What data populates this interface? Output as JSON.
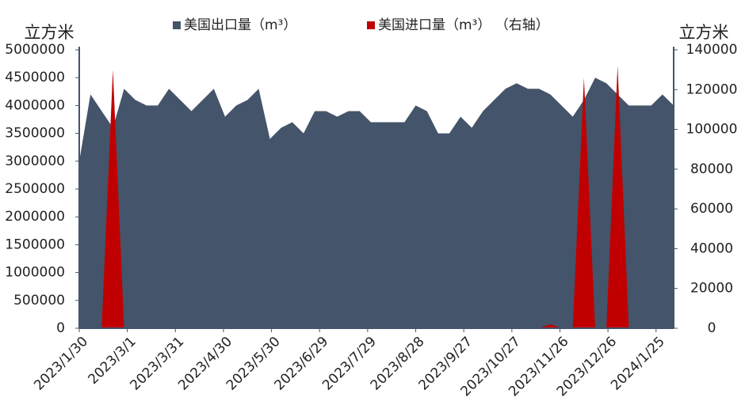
{
  "chart_data": {
    "type": "area",
    "y_axis_label": "立方米",
    "y2_axis_label": "立方米",
    "x": [
      "2023/1/30",
      "2023/2/6",
      "2023/2/13",
      "2023/2/20",
      "2023/2/27",
      "2023/3/6",
      "2023/3/13",
      "2023/3/20",
      "2023/3/27",
      "2023/4/3",
      "2023/4/10",
      "2023/4/17",
      "2023/4/24",
      "2023/5/1",
      "2023/5/8",
      "2023/5/15",
      "2023/5/22",
      "2023/5/29",
      "2023/6/5",
      "2023/6/12",
      "2023/6/19",
      "2023/6/26",
      "2023/7/3",
      "2023/7/10",
      "2023/7/17",
      "2023/7/24",
      "2023/7/31",
      "2023/8/7",
      "2023/8/14",
      "2023/8/21",
      "2023/8/28",
      "2023/9/4",
      "2023/9/11",
      "2023/9/18",
      "2023/9/25",
      "2023/10/2",
      "2023/10/9",
      "2023/10/16",
      "2023/10/23",
      "2023/10/30",
      "2023/11/6",
      "2023/11/13",
      "2023/11/20",
      "2023/11/27",
      "2023/12/4",
      "2023/12/11",
      "2023/12/18",
      "2023/12/25",
      "2024/1/1",
      "2024/1/8",
      "2024/1/15",
      "2024/1/22",
      "2024/1/29",
      "2024/2/5"
    ],
    "series": [
      {
        "name": "美国出口量（m³）",
        "color": "#44546a",
        "axis": "y",
        "values": [
          3000000,
          4200000,
          3900000,
          3600000,
          4300000,
          4100000,
          4000000,
          4000000,
          4300000,
          4100000,
          3900000,
          4100000,
          4300000,
          3800000,
          4000000,
          4100000,
          4300000,
          3400000,
          3600000,
          3700000,
          3500000,
          3900000,
          3900000,
          3800000,
          3900000,
          3900000,
          3700000,
          3700000,
          3700000,
          3700000,
          4000000,
          3900000,
          3500000,
          3500000,
          3800000,
          3600000,
          3900000,
          4100000,
          4300000,
          4400000,
          4300000,
          4300000,
          4200000,
          4000000,
          3800000,
          4100000,
          4500000,
          4400000,
          4200000,
          4000000,
          4000000,
          4000000,
          4200000,
          4000000
        ]
      },
      {
        "name": "美国进口量（m³） （右轴）",
        "color": "#c00000",
        "axis": "y2",
        "values": [
          0,
          0,
          0,
          130000,
          0,
          0,
          0,
          0,
          0,
          0,
          0,
          0,
          0,
          0,
          0,
          0,
          0,
          0,
          0,
          0,
          0,
          0,
          0,
          0,
          0,
          0,
          0,
          0,
          0,
          0,
          0,
          0,
          0,
          0,
          0,
          0,
          0,
          0,
          0,
          0,
          0,
          0,
          2000,
          0,
          0,
          126000,
          0,
          0,
          132000,
          0,
          0,
          0,
          0,
          0
        ]
      }
    ],
    "xlim": [
      "2023/1/30",
      "2024/2/5"
    ],
    "xticks": [
      "2023/1/30",
      "2023/3/1",
      "2023/3/31",
      "2023/4/30",
      "2023/5/30",
      "2023/6/29",
      "2023/7/29",
      "2023/8/28",
      "2023/9/27",
      "2023/10/27",
      "2023/11/26",
      "2023/12/26",
      "2024/1/25"
    ],
    "ylim": [
      0,
      5000000
    ],
    "yticks": [
      0,
      500000,
      1000000,
      1500000,
      2000000,
      2500000,
      3000000,
      3500000,
      4000000,
      4500000,
      5000000
    ],
    "y2lim": [
      0,
      140000
    ],
    "y2ticks": [
      0,
      20000,
      40000,
      60000,
      80000,
      100000,
      120000,
      140000
    ]
  }
}
